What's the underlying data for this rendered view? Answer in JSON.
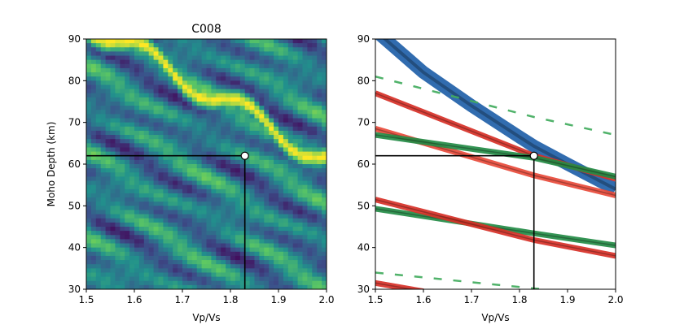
{
  "chart_data": [
    {
      "type": "heatmap",
      "title": "C008",
      "xlabel": "Vp/Vs",
      "ylabel": "Moho Depth (km)",
      "xlim": [
        1.5,
        2.0
      ],
      "ylim": [
        30,
        90
      ],
      "xticks": [
        "1.5",
        "1.6",
        "1.7",
        "1.8",
        "1.9",
        "2.0"
      ],
      "yticks": [
        "30",
        "40",
        "50",
        "60",
        "70",
        "80",
        "90"
      ],
      "colormap": "viridis",
      "colors": {
        "low": "#440154",
        "mid": "#21918c",
        "high": "#fde725"
      },
      "best_fit": {
        "vpvs": 1.83,
        "depth": 62
      }
    },
    {
      "type": "contour",
      "title": "",
      "xlabel": "Vp/Vs",
      "ylabel": "",
      "xlim": [
        1.5,
        2.0
      ],
      "ylim": [
        30,
        90
      ],
      "xticks": [
        "1.5",
        "1.6",
        "1.7",
        "1.8",
        "1.9",
        "2.0"
      ],
      "yticks": [
        "30",
        "40",
        "50",
        "60",
        "70",
        "80",
        "90"
      ],
      "best_fit": {
        "vpvs": 1.83,
        "depth": 62
      },
      "series": [
        {
          "color": "#1f5fa8",
          "points": [
            [
              1.5,
              92
            ],
            [
              1.6,
              82
            ],
            [
              1.7,
              74
            ],
            [
              1.8,
              66.5
            ],
            [
              1.83,
              64.3
            ],
            [
              1.9,
              60
            ],
            [
              2.0,
              54
            ]
          ]
        },
        {
          "color": "#d73027",
          "points": [
            [
              1.5,
              77
            ],
            [
              1.83,
              62
            ],
            [
              2.0,
              56.5
            ]
          ]
        },
        {
          "color": "#e84a3a",
          "points": [
            [
              1.5,
              68.5
            ],
            [
              1.83,
              57.3
            ],
            [
              2.0,
              52.5
            ]
          ]
        },
        {
          "color": "#238b45",
          "points": [
            [
              1.5,
              67
            ],
            [
              1.83,
              61.5
            ],
            [
              2.0,
              57
            ]
          ]
        },
        {
          "color": "#238b45",
          "points": [
            [
              1.5,
              49.3
            ],
            [
              1.83,
              43.4
            ],
            [
              2.0,
              40.5
            ]
          ]
        },
        {
          "color": "#d73027",
          "points": [
            [
              1.5,
              51.5
            ],
            [
              1.83,
              41.8
            ],
            [
              2.0,
              38
            ]
          ]
        },
        {
          "color": "#41ab5d",
          "points": [
            [
              1.5,
              81
            ],
            [
              1.83,
              71.3
            ],
            [
              2.0,
              67
            ]
          ],
          "dashed": true
        },
        {
          "color": "#41ab5d",
          "points": [
            [
              1.5,
              34
            ],
            [
              1.83,
              30.2
            ],
            [
              1.9,
              29.5
            ]
          ],
          "dashed": true
        },
        {
          "color": "#d73027",
          "points": [
            [
              1.5,
              31.5
            ],
            [
              1.6,
              29.5
            ]
          ]
        }
      ]
    }
  ]
}
